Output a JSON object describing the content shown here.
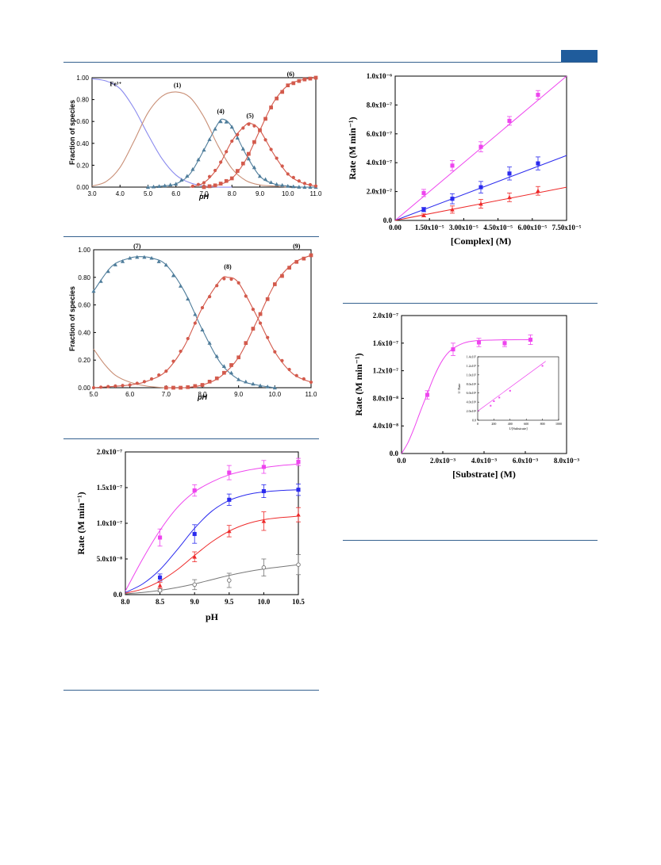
{
  "page": {
    "rule_color": "#35618f",
    "tab_color": "#1f5c9c"
  },
  "chart_data": [
    {
      "id": "speciation1",
      "type": "line",
      "xlabel": "pH",
      "ylabel": "Fraction of species",
      "xlim": [
        3.0,
        11.0
      ],
      "ylim": [
        0.0,
        1.0
      ],
      "xticks": [
        3.0,
        4.0,
        5.0,
        6.0,
        7.0,
        8.0,
        9.0,
        10.0,
        11.0
      ],
      "xtick_labels": [
        "3.0",
        "4.0",
        "5.0",
        "6.0",
        "7.0",
        "8.0",
        "9.0",
        "10.0",
        "11.0"
      ],
      "yticks": [
        0.0,
        0.2,
        0.4,
        0.6,
        0.8,
        1.0
      ],
      "ytick_labels": [
        "0.00",
        "0.20",
        "0.40",
        "0.60",
        "0.80",
        "1.00"
      ],
      "series": [
        {
          "name": "Fe3+",
          "label": "Fe³⁺",
          "color": "#8a8aee",
          "marker": "none",
          "x": [
            3.0,
            3.5,
            4.0,
            4.5,
            5.0,
            5.5,
            6.0,
            6.5,
            7.0,
            7.5,
            8.0
          ],
          "y": [
            0.99,
            0.97,
            0.9,
            0.72,
            0.48,
            0.26,
            0.11,
            0.04,
            0.01,
            0.0,
            0.0
          ],
          "label_at": [
            3.85,
            0.91
          ]
        },
        {
          "name": "(1)",
          "color": "#c98f76",
          "marker": "none",
          "x": [
            3.0,
            3.5,
            4.0,
            4.5,
            5.0,
            5.5,
            6.0,
            6.5,
            7.0,
            7.5,
            8.0,
            8.5,
            9.0,
            9.5,
            10.0
          ],
          "y": [
            0.01,
            0.05,
            0.18,
            0.42,
            0.68,
            0.83,
            0.87,
            0.82,
            0.64,
            0.38,
            0.17,
            0.06,
            0.02,
            0.01,
            0.0
          ],
          "label_at": [
            6.05,
            0.9
          ]
        },
        {
          "name": "(4)",
          "color": "#4f7d9b",
          "marker": "triangle",
          "x": [
            5.0,
            5.5,
            6.0,
            6.5,
            7.0,
            7.5,
            7.7,
            8.0,
            8.5,
            9.0,
            9.5,
            10.0,
            10.5,
            11.0
          ],
          "y": [
            0.0,
            0.01,
            0.03,
            0.12,
            0.34,
            0.58,
            0.62,
            0.55,
            0.3,
            0.1,
            0.03,
            0.01,
            0.0,
            0.0
          ],
          "label_at": [
            7.6,
            0.66
          ]
        },
        {
          "name": "(5)",
          "color": "#d35a4c",
          "marker": "circle",
          "x": [
            6.5,
            7.0,
            7.5,
            8.0,
            8.5,
            8.7,
            9.0,
            9.5,
            10.0,
            10.5,
            11.0
          ],
          "y": [
            0.0,
            0.04,
            0.18,
            0.42,
            0.57,
            0.58,
            0.52,
            0.3,
            0.12,
            0.04,
            0.01
          ],
          "label_at": [
            8.65,
            0.62
          ]
        },
        {
          "name": "(6)",
          "color": "#d35a4c",
          "marker": "square",
          "x": [
            7.0,
            7.5,
            8.0,
            8.5,
            9.0,
            9.5,
            10.0,
            10.5,
            11.0
          ],
          "y": [
            0.0,
            0.02,
            0.08,
            0.25,
            0.52,
            0.78,
            0.93,
            0.98,
            1.0
          ],
          "label_at": [
            10.1,
            1.0
          ]
        }
      ]
    },
    {
      "id": "speciation2",
      "type": "line",
      "xlabel": "pH",
      "ylabel": "Fraction of species",
      "xlim": [
        5.0,
        11.0
      ],
      "ylim": [
        0.0,
        1.0
      ],
      "xticks": [
        5.0,
        6.0,
        7.0,
        8.0,
        9.0,
        10.0,
        11.0
      ],
      "xtick_labels": [
        "5.0",
        "6.0",
        "7.0",
        "8.0",
        "9.0",
        "10.0",
        "11.0"
      ],
      "yticks": [
        0.0,
        0.2,
        0.4,
        0.6,
        0.8,
        1.0
      ],
      "ytick_labels": [
        "0.00",
        "0.20",
        "0.40",
        "0.60",
        "0.80",
        "1.00"
      ],
      "series": [
        {
          "name": "brown",
          "color": "#c98f76",
          "marker": "none",
          "x": [
            5.0,
            5.3,
            5.6,
            6.0,
            6.5,
            7.0
          ],
          "y": [
            0.28,
            0.17,
            0.09,
            0.04,
            0.01,
            0.0
          ]
        },
        {
          "name": "(7)",
          "color": "#4f7d9b",
          "marker": "triangle",
          "x": [
            5.0,
            5.5,
            6.0,
            6.3,
            6.6,
            7.0,
            7.5,
            8.0,
            8.5,
            9.0,
            9.5,
            10.0
          ],
          "y": [
            0.7,
            0.88,
            0.94,
            0.95,
            0.94,
            0.89,
            0.7,
            0.42,
            0.18,
            0.06,
            0.02,
            0.0
          ],
          "label_at": [
            6.2,
            1.0
          ]
        },
        {
          "name": "(8)",
          "color": "#d35a4c",
          "marker": "circle",
          "x": [
            5.0,
            6.0,
            6.5,
            7.0,
            7.5,
            8.0,
            8.5,
            8.7,
            9.0,
            9.5,
            10.0,
            10.5,
            11.0
          ],
          "y": [
            0.0,
            0.02,
            0.05,
            0.12,
            0.3,
            0.58,
            0.78,
            0.8,
            0.76,
            0.52,
            0.26,
            0.1,
            0.04
          ],
          "label_at": [
            8.7,
            0.85
          ]
        },
        {
          "name": "(9)",
          "color": "#d35a4c",
          "marker": "square",
          "x": [
            7.0,
            7.5,
            8.0,
            8.5,
            9.0,
            9.5,
            10.0,
            10.5,
            11.0
          ],
          "y": [
            0.0,
            0.0,
            0.02,
            0.08,
            0.22,
            0.48,
            0.75,
            0.9,
            0.96
          ],
          "label_at": [
            10.6,
            1.0
          ]
        }
      ]
    },
    {
      "id": "rate_pH",
      "type": "line",
      "xlabel": "pH",
      "ylabel": "Rate (M min⁻¹)",
      "xlim": [
        8.0,
        10.5
      ],
      "ylim": [
        0.0,
        2e-07
      ],
      "xticks": [
        8.0,
        8.5,
        9.0,
        9.5,
        10.0,
        10.5
      ],
      "xtick_labels": [
        "8.0",
        "8.5",
        "9.0",
        "9.5",
        "10.0",
        "10.5"
      ],
      "yticks": [
        0,
        5e-08,
        1e-07,
        1.5e-07,
        2e-07
      ],
      "ytick_labels": [
        "0.0",
        "5.0x10⁻⁸",
        "1.0x10⁻⁷",
        "1.5x10⁻⁷",
        "2.0x10⁻⁷"
      ],
      "series": [
        {
          "name": "magenta",
          "color": "#ee44ee",
          "marker": "square",
          "x": [
            8.5,
            9.0,
            9.5,
            10.0,
            10.5
          ],
          "y": [
            8e-08,
            1.46e-07,
            1.71e-07,
            1.79e-07,
            1.86e-07
          ],
          "err": [
            1.2e-08,
            8e-09,
            1e-08,
            9e-09,
            5e-09
          ],
          "fit": [
            5e-09,
            5e-08,
            9e-08,
            1.22e-07,
            1.44e-07,
            1.58e-07,
            1.68e-07,
            1.74e-07,
            1.78e-07,
            1.81e-07,
            1.83e-07
          ]
        },
        {
          "name": "blue",
          "color": "#2a2aee",
          "marker": "square",
          "x": [
            8.5,
            9.0,
            9.5,
            10.0,
            10.5
          ],
          "y": [
            2.4e-08,
            8.5e-08,
            1.33e-07,
            1.45e-07,
            1.47e-07
          ],
          "err": [
            5e-09,
            1.3e-08,
            8e-09,
            9e-09,
            8e-09
          ],
          "fit": [
            3e-09,
            1.5e-08,
            3.5e-08,
            6.3e-08,
            9.3e-08,
            1.17e-07,
            1.32e-07,
            1.4e-07,
            1.44e-07,
            1.46e-07,
            1.47e-07
          ]
        },
        {
          "name": "red",
          "color": "#ee2a2a",
          "marker": "triangle",
          "x": [
            8.5,
            9.0,
            9.5,
            10.0,
            10.5
          ],
          "y": [
            1.3e-08,
            5.3e-08,
            8.9e-08,
            1.03e-07,
            1.12e-07
          ],
          "err": [
            4e-09,
            7e-09,
            8e-09,
            1.3e-08,
            1e-08
          ],
          "fit": [
            2e-09,
            8e-09,
            1.9e-08,
            3.5e-08,
            5.5e-08,
            7.4e-08,
            8.9e-08,
            9.9e-08,
            1.05e-07,
            1.08e-07,
            1.1e-07
          ]
        },
        {
          "name": "gray",
          "color": "#777777",
          "marker": "circle-open",
          "x": [
            8.5,
            9.0,
            9.5,
            10.0,
            10.5
          ],
          "y": [
            6e-09,
            1.4e-08,
            2e-08,
            3.8e-08,
            4.2e-08
          ],
          "err": [
            2e-09,
            7e-09,
            1e-08,
            1.2e-08,
            1.4e-08
          ],
          "fit": [
            1e-09,
            3e-09,
            6e-09,
            1e-08,
            1.5e-08,
            2.1e-08,
            2.7e-08,
            3.2e-08,
            3.6e-08,
            3.9e-08,
            4.2e-08
          ]
        }
      ],
      "fit_x": [
        8.0,
        8.25,
        8.5,
        8.75,
        9.0,
        9.25,
        9.5,
        9.75,
        10.0,
        10.25,
        10.5
      ]
    },
    {
      "id": "rate_complex",
      "type": "scatter",
      "xlabel": "[Complex] (M)",
      "ylabel": "Rate (M min⁻¹)",
      "xlim": [
        0.0,
        7.5e-05
      ],
      "ylim": [
        0.0,
        1e-06
      ],
      "xticks": [
        0,
        1.5e-05,
        3e-05,
        4.5e-05,
        6e-05,
        7.5e-05
      ],
      "xtick_labels": [
        "0.00",
        "1.50x10⁻⁵",
        "3.00x10⁻⁵",
        "4.50x10⁻⁵",
        "6.00x10⁻⁵",
        "7.50x10⁻⁵"
      ],
      "yticks": [
        0,
        2e-07,
        4e-07,
        6e-07,
        8e-07,
        1e-06
      ],
      "ytick_labels": [
        "0.0",
        "2.0x10⁻⁷",
        "4.0x10⁻⁷",
        "6.0x10⁻⁷",
        "8.0x10⁻⁷",
        "1.0x10⁻⁶"
      ],
      "series": [
        {
          "name": "magenta",
          "color": "#ee44ee",
          "marker": "square",
          "x": [
            1.25e-05,
            2.5e-05,
            3.75e-05,
            5e-05,
            6.25e-05
          ],
          "y": [
            1.9e-07,
            3.8e-07,
            5.1e-07,
            6.9e-07,
            8.7e-07
          ],
          "err": [
            2.5e-08,
            3.5e-08,
            3.5e-08,
            3e-08,
            3e-08
          ],
          "fit_to": [
            7.5e-05,
            1e-06
          ]
        },
        {
          "name": "blue",
          "color": "#2a2aee",
          "marker": "square",
          "x": [
            1.25e-05,
            2.5e-05,
            3.75e-05,
            5e-05,
            6.25e-05
          ],
          "y": [
            7.5e-08,
            1.5e-07,
            2.3e-07,
            3.25e-07,
            3.95e-07
          ],
          "err": [
            1.5e-08,
            3.5e-08,
            4e-08,
            4.5e-08,
            4.5e-08
          ],
          "fit_to": [
            7.5e-05,
            4.5e-07
          ]
        },
        {
          "name": "red",
          "color": "#ee2a2a",
          "marker": "triangle",
          "x": [
            1.25e-05,
            2.5e-05,
            3.75e-05,
            5e-05,
            6.25e-05
          ],
          "y": [
            3.5e-08,
            7.5e-08,
            1.15e-07,
            1.6e-07,
            2.05e-07
          ],
          "err": [
            1e-08,
            2.5e-08,
            3e-08,
            3e-08,
            3e-08
          ],
          "fit_to": [
            7.5e-05,
            2.3e-07
          ]
        }
      ]
    },
    {
      "id": "rate_substrate",
      "type": "line",
      "xlabel": "[Substrate] (M)",
      "ylabel": "Rate (M min⁻¹)",
      "xlim": [
        0.0,
        0.008
      ],
      "ylim": [
        0.0,
        2e-07
      ],
      "xticks": [
        0,
        0.002,
        0.004,
        0.006,
        0.008
      ],
      "xtick_labels": [
        "0.0",
        "2.0x10⁻³",
        "4.0x10⁻³",
        "6.0x10⁻³",
        "8.0x10⁻³"
      ],
      "yticks": [
        0,
        4e-08,
        8e-08,
        1.2e-07,
        1.6e-07,
        2e-07
      ],
      "ytick_labels": [
        "0.0",
        "4.0x10⁻⁸",
        "8.0x10⁻⁸",
        "1.2x10⁻⁷",
        "1.6x10⁻⁷",
        "2.0x10⁻⁷"
      ],
      "series": [
        {
          "name": "magenta",
          "color": "#ee44ee",
          "marker": "square",
          "x": [
            0.00125,
            0.0025,
            0.00375,
            0.005,
            0.00625
          ],
          "y": [
            8.5e-08,
            1.51e-07,
            1.61e-07,
            1.6e-07,
            1.65e-07
          ],
          "err": [
            6e-09,
            9e-09,
            6e-09,
            5e-09,
            7e-09
          ],
          "fit_x": [
            0,
            0.0003,
            0.0006,
            0.0009,
            0.0012,
            0.0016,
            0.002,
            0.0024,
            0.003,
            0.0036,
            0.0045,
            0.0055,
            0.00625
          ],
          "fit_y": [
            0,
            1.5e-08,
            3.6e-08,
            6e-08,
            8.3e-08,
            1.13e-07,
            1.36e-07,
            1.5e-07,
            1.6e-07,
            1.635e-07,
            1.645e-07,
            1.65e-07,
            1.65e-07
          ]
        }
      ],
      "inset": {
        "type": "scatter",
        "xlabel": "1/[Substrate]",
        "ylabel": "1/ Rate",
        "xlim": [
          0,
          1000
        ],
        "ylim": [
          0,
          14000000.0
        ],
        "xticks": [
          0,
          200,
          400,
          600,
          800,
          1000
        ],
        "xtick_labels": [
          "0",
          "200",
          "400",
          "600",
          "800",
          "1000"
        ],
        "yticks": [
          0,
          2000000.0,
          4000000.0,
          6000000.0,
          8000000.0,
          10000000.0,
          12000000.0,
          14000000.0
        ],
        "ytick_labels": [
          "0.0",
          "2.0x10⁶",
          "4.0x10⁶",
          "6.0x10⁶",
          "8.0x10⁶",
          "1.0x10⁷",
          "1.2x10⁷",
          "1.4x10⁷"
        ],
        "color": "#ee44ee",
        "x": [
          160,
          200,
          267,
          400,
          800
        ],
        "y": [
          3200000.0,
          4200000.0,
          5000000.0,
          6500000.0,
          12000000.0
        ],
        "fit_from": [
          0,
          2000000.0
        ],
        "fit_to": [
          840,
          13000000.0
        ]
      }
    }
  ]
}
